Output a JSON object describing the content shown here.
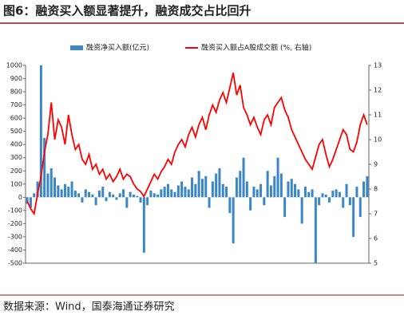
{
  "chart_data": {
    "type": "bar-line",
    "title": "图6：融资买入额显著提升，融资成交占比回升",
    "source": "数据来源：Wind，国泰海通证券研究",
    "categories": [
      null,
      null,
      null,
      null,
      null,
      null,
      null,
      null,
      null,
      null,
      null,
      null,
      null,
      null,
      null,
      null,
      null,
      null,
      null,
      null,
      null,
      null,
      null,
      null,
      null,
      null,
      null,
      null,
      null,
      null,
      null,
      null,
      null,
      null,
      null,
      null,
      null,
      null,
      null,
      null,
      null,
      null,
      null,
      null,
      null,
      null,
      null,
      null,
      null,
      null,
      null,
      null,
      null,
      null,
      null,
      null,
      null,
      null,
      null,
      null,
      null,
      null,
      null,
      null,
      null,
      null,
      null,
      null,
      null,
      null,
      null,
      null,
      null,
      null,
      null,
      null,
      null,
      null,
      null,
      null,
      null,
      null,
      null,
      null,
      null,
      null,
      null,
      null,
      null,
      null,
      null,
      null,
      null,
      null,
      null,
      null,
      null,
      null,
      null,
      null
    ],
    "series": [
      {
        "name": "融资净买入额(亿元)",
        "color": "#3a86c8",
        "type": "bar",
        "values": [
          -50,
          -80,
          30,
          120,
          1000,
          450,
          180,
          220,
          150,
          90,
          60,
          100,
          80,
          120,
          50,
          30,
          -40,
          60,
          40,
          20,
          -60,
          50,
          80,
          -30,
          40,
          20,
          -20,
          30,
          60,
          -80,
          40,
          20,
          10,
          -40,
          -420,
          -60,
          50,
          30,
          20,
          60,
          80,
          100,
          60,
          40,
          90,
          120,
          80,
          60,
          150,
          100,
          200,
          140,
          160,
          -80,
          120,
          180,
          220,
          100,
          80,
          -120,
          -350,
          150,
          200,
          300,
          120,
          -100,
          80,
          60,
          100,
          -60,
          200,
          90,
          160,
          300,
          180,
          -150,
          120,
          140,
          100,
          60,
          -200,
          80,
          40,
          60,
          -500,
          -60,
          30,
          20,
          -40,
          50,
          60,
          40,
          -80,
          100,
          -60,
          -300,
          80,
          -150,
          120,
          160
        ]
      },
      {
        "name": "融资买入额占A股成交额 (%, 右轴)",
        "color": "#ff0000",
        "type": "line",
        "axis": "y2",
        "values": [
          7.5,
          7.2,
          7.0,
          7.8,
          8.5,
          9.5,
          10.2,
          11.5,
          10.0,
          10.8,
          10.5,
          9.8,
          11.0,
          10.2,
          9.6,
          9.8,
          9.2,
          9.0,
          9.4,
          8.8,
          9.0,
          8.6,
          8.8,
          8.4,
          8.6,
          8.3,
          8.5,
          8.8,
          8.4,
          8.6,
          8.5,
          8.2,
          8.0,
          7.9,
          7.7,
          8.0,
          8.3,
          8.6,
          8.4,
          8.7,
          8.9,
          9.2,
          9.0,
          9.5,
          9.8,
          10.0,
          9.7,
          10.2,
          10.5,
          10.1,
          10.6,
          10.9,
          10.4,
          11.0,
          11.4,
          11.1,
          11.6,
          11.9,
          11.5,
          12.1,
          12.7,
          11.8,
          12.2,
          11.3,
          11.0,
          10.6,
          10.9,
          10.5,
          10.2,
          10.8,
          11.0,
          10.6,
          11.3,
          11.5,
          11.7,
          11.2,
          10.9,
          10.4,
          10.1,
          9.8,
          9.5,
          9.2,
          9.0,
          8.8,
          9.3,
          9.8,
          10.0,
          9.4,
          8.9,
          9.2,
          9.6,
          10.0,
          10.4,
          10.2,
          9.6,
          9.5,
          9.9,
          10.6,
          11.0,
          10.6
        ]
      }
    ],
    "ylim": [
      -500,
      1000
    ],
    "yticks": [
      -500,
      -400,
      -300,
      -200,
      -100,
      0,
      100,
      200,
      300,
      400,
      500,
      600,
      700,
      800,
      900,
      1000
    ],
    "y2lim": [
      5,
      13
    ],
    "y2ticks": [
      5,
      6,
      7,
      8,
      9,
      10,
      11,
      12,
      13
    ],
    "grid": false
  }
}
